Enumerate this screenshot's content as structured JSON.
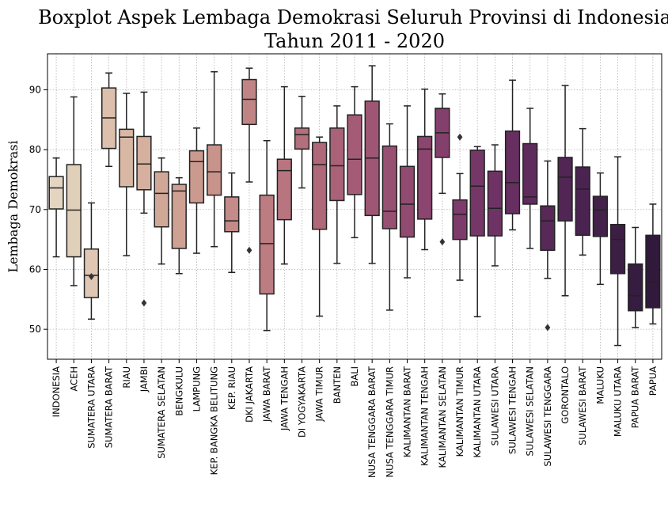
{
  "chart_data": {
    "type": "boxplot",
    "title_lines": [
      "Boxplot Aspek Lembaga Demokrasi Seluruh Provinsi di Indonesia",
      "Tahun 2011 - 2020"
    ],
    "xlabel": "",
    "ylabel": "Lembaga Demokrasi",
    "ylim": [
      45,
      96
    ],
    "yticks": [
      50,
      60,
      70,
      80,
      90
    ],
    "grid": true,
    "categories": [
      "INDONESIA",
      "ACEH",
      "SUMATERA UTARA",
      "SUMATERA BARAT",
      "RIAU",
      "JAMBI",
      "SUMATERA SELATAN",
      "BENGKULU",
      "LAMPUNG",
      "KEP. BANGKA BELITUNG",
      "KEP. RIAU",
      "DKI JAKARTA",
      "JAWA BARAT",
      "JAWA TENGAH",
      "DI YOGYAKARTA",
      "JAWA TIMUR",
      "BANTEN",
      "BALI",
      "NUSA TENGGARA BARAT",
      "NUSA TENGGARA TIMUR",
      "KALIMANTAN BARAT",
      "KALIMANTAN TENGAH",
      "KALIMANTAN SELATAN",
      "KALIMANTAN TIMUR",
      "KALIMANTAN UTARA",
      "SULAWESI UTARA",
      "SULAWESI TENGAH",
      "SULAWESI SELATAN",
      "SULAWESI TENGGARA",
      "GORONTALO",
      "SULAWESI BARAT",
      "MALUKU",
      "MALUKU UTARA",
      "PAPUA BARAT",
      "PAPUA"
    ],
    "boxes": [
      {
        "min": 62.1,
        "q1": 70.1,
        "median": 73.6,
        "q3": 75.5,
        "max": 78.6,
        "outliers": []
      },
      {
        "min": 57.3,
        "q1": 62.1,
        "median": 69.9,
        "q3": 77.5,
        "max": 88.8,
        "outliers": []
      },
      {
        "min": 51.7,
        "q1": 55.3,
        "median": 59.0,
        "q3": 63.4,
        "max": 71.1,
        "outliers": [
          58.8
        ]
      },
      {
        "min": 77.2,
        "q1": 80.2,
        "median": 85.3,
        "q3": 90.3,
        "max": 92.8,
        "outliers": []
      },
      {
        "min": 62.3,
        "q1": 73.8,
        "median": 82.1,
        "q3": 83.4,
        "max": 89.4,
        "outliers": []
      },
      {
        "min": 69.4,
        "q1": 73.3,
        "median": 77.6,
        "q3": 82.2,
        "max": 89.6,
        "outliers": [
          54.4
        ]
      },
      {
        "min": 60.9,
        "q1": 67.1,
        "median": 72.7,
        "q3": 76.3,
        "max": 78.6,
        "outliers": []
      },
      {
        "min": 59.3,
        "q1": 63.5,
        "median": 73.1,
        "q3": 74.2,
        "max": 75.3,
        "outliers": []
      },
      {
        "min": 62.7,
        "q1": 71.1,
        "median": 78.0,
        "q3": 79.8,
        "max": 83.6,
        "outliers": []
      },
      {
        "min": 63.8,
        "q1": 72.4,
        "median": 76.3,
        "q3": 80.8,
        "max": 93.0,
        "outliers": []
      },
      {
        "min": 59.5,
        "q1": 66.3,
        "median": 68.1,
        "q3": 72.1,
        "max": 76.1,
        "outliers": []
      },
      {
        "min": 74.6,
        "q1": 84.2,
        "median": 88.4,
        "q3": 91.7,
        "max": 93.6,
        "outliers": [
          63.2
        ]
      },
      {
        "min": 49.8,
        "q1": 55.9,
        "median": 64.3,
        "q3": 72.4,
        "max": 81.5,
        "outliers": []
      },
      {
        "min": 60.9,
        "q1": 68.3,
        "median": 76.5,
        "q3": 78.4,
        "max": 90.5,
        "outliers": []
      },
      {
        "min": 73.6,
        "q1": 80.1,
        "median": 82.5,
        "q3": 83.6,
        "max": 88.9,
        "outliers": []
      },
      {
        "min": 52.2,
        "q1": 66.7,
        "median": 77.5,
        "q3": 81.2,
        "max": 82.1,
        "outliers": []
      },
      {
        "min": 61.0,
        "q1": 71.5,
        "median": 77.3,
        "q3": 83.6,
        "max": 87.3,
        "outliers": []
      },
      {
        "min": 65.3,
        "q1": 72.5,
        "median": 78.4,
        "q3": 85.8,
        "max": 90.5,
        "outliers": []
      },
      {
        "min": 61.0,
        "q1": 69.0,
        "median": 78.6,
        "q3": 88.1,
        "max": 94.0,
        "outliers": []
      },
      {
        "min": 53.2,
        "q1": 66.8,
        "median": 69.7,
        "q3": 80.6,
        "max": 84.3,
        "outliers": []
      },
      {
        "min": 58.6,
        "q1": 65.4,
        "median": 70.9,
        "q3": 77.2,
        "max": 87.3,
        "outliers": []
      },
      {
        "min": 63.3,
        "q1": 68.4,
        "median": 80.1,
        "q3": 82.2,
        "max": 90.1,
        "outliers": []
      },
      {
        "min": 72.7,
        "q1": 78.7,
        "median": 82.8,
        "q3": 86.9,
        "max": 89.3,
        "outliers": [
          64.6
        ]
      },
      {
        "min": 58.2,
        "q1": 65.0,
        "median": 69.2,
        "q3": 71.6,
        "max": 76.0,
        "outliers": [
          82.1
        ]
      },
      {
        "min": 52.1,
        "q1": 65.6,
        "median": 73.9,
        "q3": 79.9,
        "max": 80.5,
        "outliers": []
      },
      {
        "min": 60.6,
        "q1": 65.6,
        "median": 70.2,
        "q3": 76.4,
        "max": 80.8,
        "outliers": []
      },
      {
        "min": 66.6,
        "q1": 69.3,
        "median": 74.5,
        "q3": 83.1,
        "max": 91.6,
        "outliers": []
      },
      {
        "min": 63.5,
        "q1": 70.9,
        "median": 72.1,
        "q3": 81.0,
        "max": 86.9,
        "outliers": []
      },
      {
        "min": 58.5,
        "q1": 63.2,
        "median": 68.1,
        "q3": 70.6,
        "max": 78.1,
        "outliers": [
          50.3
        ]
      },
      {
        "min": 55.6,
        "q1": 68.1,
        "median": 75.4,
        "q3": 78.7,
        "max": 90.7,
        "outliers": []
      },
      {
        "min": 62.4,
        "q1": 65.7,
        "median": 73.4,
        "q3": 77.1,
        "max": 83.5,
        "outliers": []
      },
      {
        "min": 57.5,
        "q1": 65.5,
        "median": 69.9,
        "q3": 72.2,
        "max": 76.1,
        "outliers": []
      },
      {
        "min": 47.3,
        "q1": 59.3,
        "median": 65.0,
        "q3": 67.5,
        "max": 78.8,
        "outliers": []
      },
      {
        "min": 50.3,
        "q1": 53.1,
        "median": 55.6,
        "q3": 60.9,
        "max": 67.0,
        "outliers": []
      },
      {
        "min": 50.9,
        "q1": 53.6,
        "median": 57.9,
        "q3": 65.7,
        "max": 70.9,
        "outliers": []
      }
    ],
    "colors": [
      "#e3d5c2",
      "#e0cfb9",
      "#dfc7b3",
      "#dcbfac",
      "#d8b8a5",
      "#d5b09e",
      "#d1a898",
      "#cea193",
      "#cb9a8f",
      "#c7938b",
      "#c48b88",
      "#c08485",
      "#bc7c82",
      "#b8757f",
      "#b36f7c",
      "#ae687a",
      "#a96277",
      "#a45c76",
      "#9e5674",
      "#985072",
      "#914a70",
      "#8b456e",
      "#84406c",
      "#7c3b6a",
      "#753767",
      "#6e3364",
      "#672f61",
      "#5f2b5d",
      "#582859",
      "#512655",
      "#4a2350",
      "#43214b",
      "#3c1e45",
      "#361c40",
      "#30193a"
    ]
  }
}
